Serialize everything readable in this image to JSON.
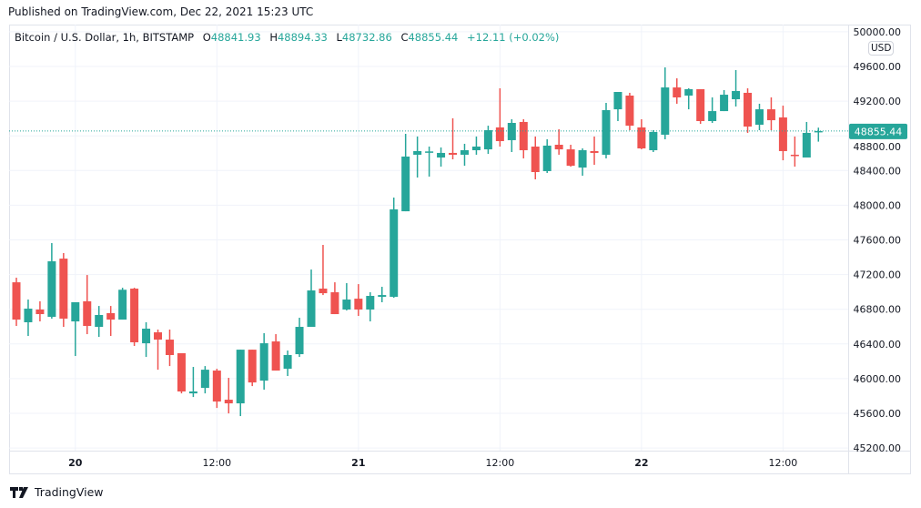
{
  "published": "Published on TradingView.com, Dec 22, 2021 15:23 UTC",
  "legend": {
    "symbol": "Bitcoin / U.S. Dollar, 1h, BITSTAMP",
    "o_label": "O",
    "o": "48841.93",
    "h_label": "H",
    "h": "48894.33",
    "l_label": "L",
    "l": "48732.86",
    "c_label": "C",
    "c": "48855.44",
    "change": "+12.11 (+0.02%)"
  },
  "currency_badge": "USD",
  "footer": {
    "brand": "TradingView",
    "logo_icon": "tradingview-logo-icon"
  },
  "colors": {
    "up": "#26a69a",
    "down": "#ef5350",
    "grid": "#f0f3fa",
    "border": "#e0e3eb"
  },
  "chart_data": {
    "type": "candlestick",
    "interval": "1h",
    "ylim": [
      45200,
      50000
    ],
    "y_ticks": [
      "45200.00",
      "45600.00",
      "46000.00",
      "46400.00",
      "46800.00",
      "47200.00",
      "47600.00",
      "48000.00",
      "48400.00",
      "48800.00",
      "49200.00",
      "49600.00",
      "50000.00"
    ],
    "x_ticks": [
      {
        "label": "20",
        "time": "2021-12-20T00:00",
        "bold": true
      },
      {
        "label": "12:00",
        "time": "2021-12-20T12:00",
        "bold": false
      },
      {
        "label": "21",
        "time": "2021-12-21T00:00",
        "bold": true
      },
      {
        "label": "12:00",
        "time": "2021-12-21T12:00",
        "bold": false
      },
      {
        "label": "22",
        "time": "2021-12-22T00:00",
        "bold": true
      },
      {
        "label": "12:00",
        "time": "2021-12-22T12:00",
        "bold": false
      }
    ],
    "last_price_label": "48855.44",
    "grid": true,
    "columns": [
      "time",
      "open",
      "high",
      "low",
      "close"
    ],
    "candles": [
      [
        "2021-12-19T19:00",
        47111,
        47164,
        46608,
        46681
      ],
      [
        "2021-12-19T20:00",
        46650,
        46912,
        46492,
        46807
      ],
      [
        "2021-12-19T21:00",
        46797,
        46892,
        46660,
        46744
      ],
      [
        "2021-12-19T22:00",
        46713,
        47563,
        46692,
        47353
      ],
      [
        "2021-12-19T23:00",
        47384,
        47448,
        46597,
        46692
      ],
      [
        "2021-12-20T00:00",
        46660,
        46881,
        46261,
        46881
      ],
      [
        "2021-12-20T01:00",
        46892,
        47195,
        46513,
        46608
      ],
      [
        "2021-12-20T02:00",
        46597,
        46838,
        46481,
        46734
      ],
      [
        "2021-12-20T03:00",
        46755,
        46838,
        46492,
        46681
      ],
      [
        "2021-12-20T04:00",
        46681,
        47048,
        46681,
        47025
      ],
      [
        "2021-12-20T05:00",
        47038,
        47048,
        46377,
        46419
      ],
      [
        "2021-12-20T06:00",
        46408,
        46650,
        46250,
        46576
      ],
      [
        "2021-12-20T07:00",
        46534,
        46566,
        46103,
        46450
      ],
      [
        "2021-12-20T08:00",
        46450,
        46566,
        46145,
        46272
      ],
      [
        "2021-12-20T09:00",
        46293,
        46293,
        45830,
        45852
      ],
      [
        "2021-12-20T10:00",
        45830,
        46135,
        45788,
        45852
      ],
      [
        "2021-12-20T11:00",
        45893,
        46145,
        45830,
        46103
      ],
      [
        "2021-12-20T12:00",
        46093,
        46114,
        45662,
        45736
      ],
      [
        "2021-12-20T13:00",
        45757,
        46009,
        45599,
        45715
      ],
      [
        "2021-12-20T14:00",
        45715,
        46334,
        45568,
        46334
      ],
      [
        "2021-12-20T15:00",
        46334,
        46334,
        45914,
        45956
      ],
      [
        "2021-12-20T16:00",
        45977,
        46524,
        45873,
        46408
      ],
      [
        "2021-12-20T17:00",
        46429,
        46513,
        46093,
        46093
      ],
      [
        "2021-12-20T18:00",
        46114,
        46324,
        46030,
        46272
      ],
      [
        "2021-12-20T19:00",
        46282,
        46702,
        46250,
        46597
      ],
      [
        "2021-12-20T20:00",
        46597,
        47258,
        46597,
        47017
      ],
      [
        "2021-12-20T21:00",
        47038,
        47542,
        46964,
        46985
      ],
      [
        "2021-12-20T22:00",
        46996,
        47111,
        46744,
        46744
      ],
      [
        "2021-12-20T23:00",
        46797,
        47101,
        46786,
        46912
      ],
      [
        "2021-12-21T00:00",
        46922,
        47090,
        46723,
        46797
      ],
      [
        "2021-12-21T01:00",
        46797,
        46996,
        46660,
        46954
      ],
      [
        "2021-12-21T02:00",
        46943,
        47059,
        46881,
        46964
      ],
      [
        "2021-12-21T03:00",
        46943,
        48088,
        46933,
        47952
      ],
      [
        "2021-12-21T04:00",
        47930,
        48823,
        47930,
        48561
      ],
      [
        "2021-12-21T05:00",
        48582,
        48792,
        48319,
        48624
      ],
      [
        "2021-12-21T06:00",
        48613,
        48676,
        48330,
        48620
      ],
      [
        "2021-12-21T07:00",
        48550,
        48666,
        48445,
        48603
      ],
      [
        "2021-12-21T08:00",
        48603,
        49002,
        48529,
        48582
      ],
      [
        "2021-12-21T09:00",
        48582,
        48708,
        48455,
        48634
      ],
      [
        "2021-12-21T10:00",
        48634,
        48792,
        48582,
        48676
      ],
      [
        "2021-12-21T11:00",
        48644,
        48917,
        48592,
        48865
      ],
      [
        "2021-12-21T12:00",
        48897,
        49348,
        48676,
        48739
      ],
      [
        "2021-12-21T13:00",
        48750,
        48991,
        48613,
        48949
      ],
      [
        "2021-12-21T14:00",
        48960,
        48991,
        48540,
        48634
      ],
      [
        "2021-12-21T15:00",
        48676,
        48792,
        48298,
        48382
      ],
      [
        "2021-12-21T16:00",
        48393,
        48760,
        48372,
        48687
      ],
      [
        "2021-12-21T17:00",
        48697,
        48876,
        48582,
        48644
      ],
      [
        "2021-12-21T18:00",
        48644,
        48697,
        48445,
        48455
      ],
      [
        "2021-12-21T19:00",
        48434,
        48655,
        48340,
        48634
      ],
      [
        "2021-12-21T20:00",
        48624,
        48792,
        48466,
        48603
      ],
      [
        "2021-12-21T21:00",
        48582,
        49180,
        48540,
        49096
      ],
      [
        "2021-12-21T22:00",
        49106,
        49306,
        48970,
        49306
      ],
      [
        "2021-12-21T23:00",
        49264,
        49296,
        48865,
        48917
      ],
      [
        "2021-12-22T00:00",
        48897,
        48991,
        48645,
        48655
      ],
      [
        "2021-12-22T01:00",
        48634,
        48865,
        48613,
        48844
      ],
      [
        "2021-12-22T02:00",
        48813,
        49589,
        48760,
        49358
      ],
      [
        "2021-12-22T03:00",
        49358,
        49463,
        49170,
        49243
      ],
      [
        "2021-12-22T04:00",
        49264,
        49348,
        49106,
        49338
      ],
      [
        "2021-12-22T05:00",
        49338,
        49338,
        48938,
        48970
      ],
      [
        "2021-12-22T06:00",
        48970,
        49243,
        48949,
        49085
      ],
      [
        "2021-12-22T07:00",
        49085,
        49327,
        49085,
        49274
      ],
      [
        "2021-12-22T08:00",
        49222,
        49558,
        49138,
        49317
      ],
      [
        "2021-12-22T09:00",
        49296,
        49348,
        48834,
        48907
      ],
      [
        "2021-12-22T10:00",
        48928,
        49170,
        48865,
        49106
      ],
      [
        "2021-12-22T11:00",
        49106,
        49243,
        48865,
        48980
      ],
      [
        "2021-12-22T12:00",
        49012,
        49148,
        48518,
        48624
      ],
      [
        "2021-12-22T13:00",
        48582,
        48792,
        48445,
        48571
      ],
      [
        "2021-12-22T14:00",
        48550,
        48960,
        48550,
        48834
      ],
      [
        "2021-12-22T15:00",
        48841.93,
        48894.33,
        48732.86,
        48855.44
      ]
    ]
  }
}
